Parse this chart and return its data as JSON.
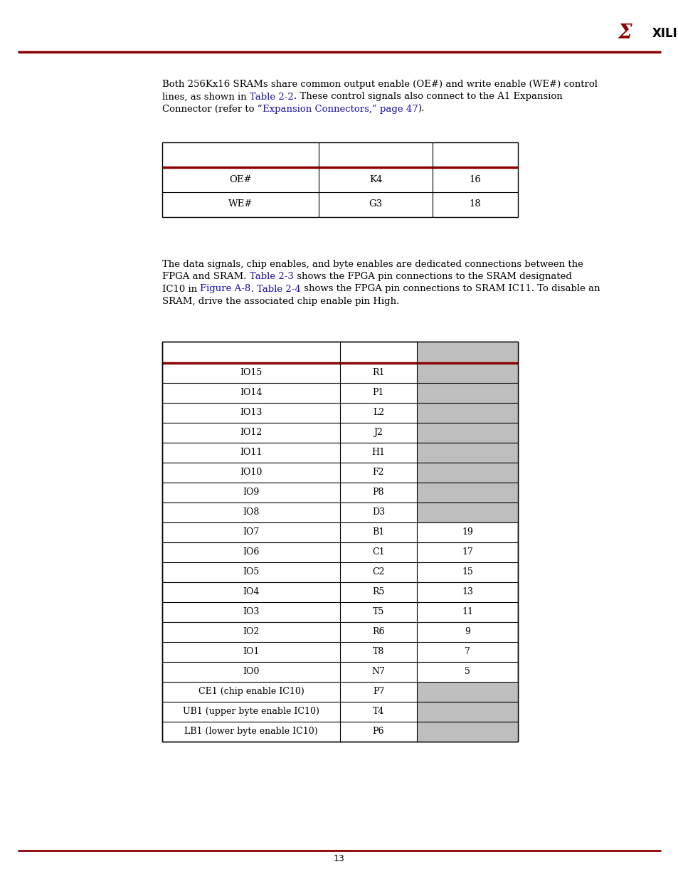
{
  "background_color": "#ffffff",
  "dark_red": "#8B0000",
  "gray_cell": "#BEBEBE",
  "blue_link": "#1a0dab",
  "page_num": "13",
  "para1_lines": [
    {
      "segments": [
        {
          "text": "Both 256Kx16 SRAMs share common output enable (OE#) and write enable (WE#) control",
          "color": "#000000"
        }
      ]
    },
    {
      "segments": [
        {
          "text": "lines, as shown in ",
          "color": "#000000"
        },
        {
          "text": "Table 2-2",
          "color": "#1a0dab"
        },
        {
          "text": ". These control signals also connect to the A1 Expansion",
          "color": "#000000"
        }
      ]
    },
    {
      "segments": [
        {
          "text": "Connector (refer to “",
          "color": "#000000"
        },
        {
          "text": "Expansion Connectors,” page 47",
          "color": "#1a0dab"
        },
        {
          "text": ").",
          "color": "#000000"
        }
      ]
    }
  ],
  "table1_rows": [
    [
      "OE#",
      "K4",
      "16"
    ],
    [
      "WE#",
      "G3",
      "18"
    ]
  ],
  "para2_lines": [
    {
      "segments": [
        {
          "text": "The data signals, chip enables, and byte enables are dedicated connections between the",
          "color": "#000000"
        }
      ]
    },
    {
      "segments": [
        {
          "text": "FPGA and SRAM. ",
          "color": "#000000"
        },
        {
          "text": "Table 2-3",
          "color": "#1a0dab"
        },
        {
          "text": " shows the FPGA pin connections to the SRAM designated",
          "color": "#000000"
        }
      ]
    },
    {
      "segments": [
        {
          "text": "IC10 in ",
          "color": "#000000"
        },
        {
          "text": "Figure A-8",
          "color": "#1a0dab"
        },
        {
          "text": ". ",
          "color": "#000000"
        },
        {
          "text": "Table 2-4",
          "color": "#1a0dab"
        },
        {
          "text": " shows the FPGA pin connections to SRAM IC11. To disable an",
          "color": "#000000"
        }
      ]
    },
    {
      "segments": [
        {
          "text": "SRAM, drive the associated chip enable pin High.",
          "color": "#000000"
        }
      ]
    }
  ],
  "table2_rows": [
    [
      "IO15",
      "R1",
      "gray"
    ],
    [
      "IO14",
      "P1",
      "gray"
    ],
    [
      "IO13",
      "L2",
      "gray"
    ],
    [
      "IO12",
      "J2",
      "gray"
    ],
    [
      "IO11",
      "H1",
      "gray"
    ],
    [
      "IO10",
      "F2",
      "gray"
    ],
    [
      "IO9",
      "P8",
      "gray"
    ],
    [
      "IO8",
      "D3",
      "gray"
    ],
    [
      "IO7",
      "B1",
      "19"
    ],
    [
      "IO6",
      "C1",
      "17"
    ],
    [
      "IO5",
      "C2",
      "15"
    ],
    [
      "IO4",
      "R5",
      "13"
    ],
    [
      "IO3",
      "T5",
      "11"
    ],
    [
      "IO2",
      "R6",
      "9"
    ],
    [
      "IO1",
      "T8",
      "7"
    ],
    [
      "IO0",
      "N7",
      "5"
    ],
    [
      "CE1 (chip enable IC10)",
      "P7",
      "gray"
    ],
    [
      "UB1 (upper byte enable IC10)",
      "T4",
      "gray"
    ],
    [
      "LB1 (lower byte enable IC10)",
      "P6",
      "gray"
    ]
  ]
}
